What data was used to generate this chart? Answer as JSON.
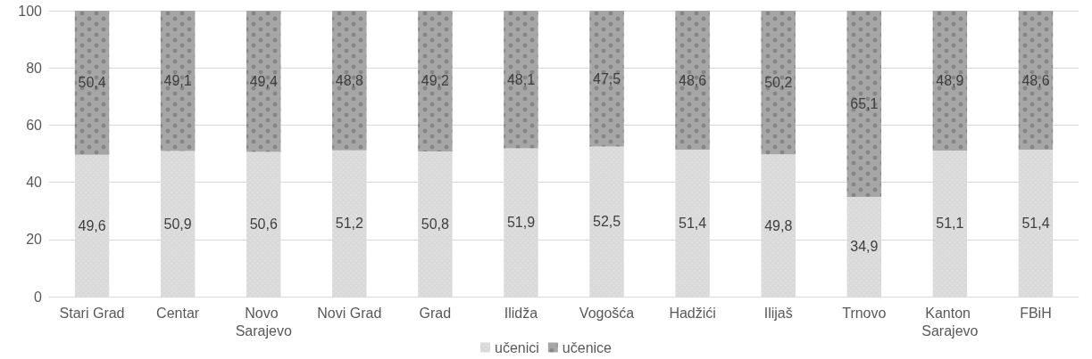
{
  "chart_data": {
    "type": "bar",
    "stacked": true,
    "categories": [
      "Stari Grad",
      "Centar",
      "Novo Sarajevo",
      "Novi Grad",
      "Grad",
      "Ilidža",
      "Vogošća",
      "Hadžići",
      "Ilijaš",
      "Trnovo",
      "Kanton Sarajevo",
      "FBiH"
    ],
    "series": [
      {
        "name": "učenici",
        "color": "#d9d9d9",
        "values": [
          49.6,
          50.9,
          50.6,
          51.2,
          50.8,
          51.9,
          52.5,
          51.4,
          49.8,
          34.9,
          51.1,
          51.4
        ],
        "value_labels": [
          "49,6",
          "50,9",
          "50,6",
          "51,2",
          "50,8",
          "51,9",
          "52,5",
          "51,4",
          "49,8",
          "34,9",
          "51,1",
          "51,4"
        ]
      },
      {
        "name": "učenice",
        "color": "#a6a6a6",
        "values": [
          50.4,
          49.1,
          49.4,
          48.8,
          49.2,
          48.1,
          47.5,
          48.6,
          50.2,
          65.1,
          48.9,
          48.6
        ],
        "value_labels": [
          "50,4",
          "49,1",
          "49,4",
          "48,8",
          "49,2",
          "48,1",
          "47,5",
          "48,6",
          "50,2",
          "65,1",
          "48,9",
          "48,6"
        ]
      }
    ],
    "ylim": [
      0,
      100
    ],
    "yticks": [
      0,
      20,
      40,
      60,
      80,
      100
    ],
    "grid": "y",
    "legend": "bottom"
  }
}
